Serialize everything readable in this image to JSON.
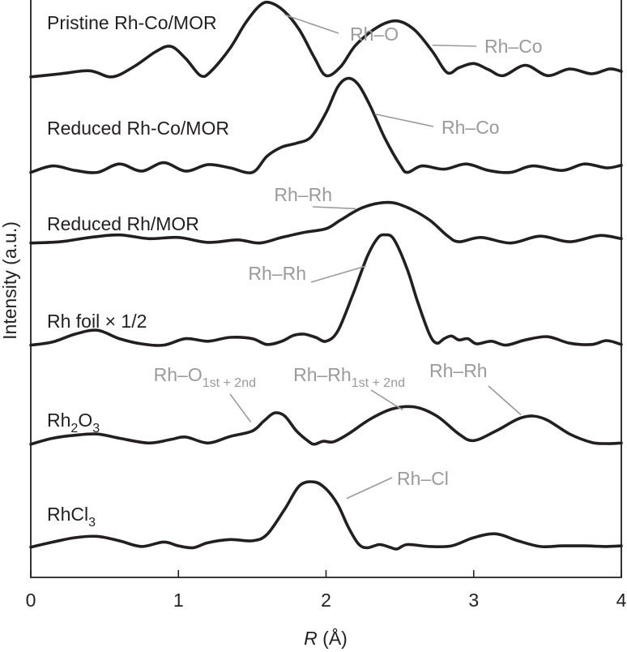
{
  "chart_data": {
    "type": "line",
    "xlabel_var": "R",
    "xlabel_unit": " (Å)",
    "ylabel": "Intensity (a.u.)",
    "xlim": [
      0,
      4
    ],
    "xticks": [
      "0",
      "1",
      "2",
      "3",
      "4"
    ],
    "series": [
      {
        "name": "Pristine Rh-Co/MOR",
        "label_parts": [
          {
            "t": "Pristine Rh-Co/MOR",
            "sub": false
          }
        ],
        "points": [
          [
            0,
            0.03
          ],
          [
            0.2,
            0.08
          ],
          [
            0.4,
            0.13
          ],
          [
            0.55,
            0.03
          ],
          [
            0.7,
            0.2
          ],
          [
            0.85,
            0.45
          ],
          [
            0.95,
            0.53
          ],
          [
            1.05,
            0.33
          ],
          [
            1.15,
            0.05
          ],
          [
            1.22,
            0.12
          ],
          [
            1.35,
            0.5
          ],
          [
            1.45,
            0.9
          ],
          [
            1.55,
            1.2
          ],
          [
            1.62,
            1.25
          ],
          [
            1.72,
            1.1
          ],
          [
            1.82,
            0.8
          ],
          [
            1.92,
            0.35
          ],
          [
            2.0,
            0.05
          ],
          [
            2.1,
            0.2
          ],
          [
            2.2,
            0.55
          ],
          [
            2.35,
            0.85
          ],
          [
            2.48,
            0.95
          ],
          [
            2.6,
            0.8
          ],
          [
            2.72,
            0.45
          ],
          [
            2.82,
            0.1
          ],
          [
            2.9,
            0.18
          ],
          [
            3.0,
            0.25
          ],
          [
            3.1,
            0.15
          ],
          [
            3.2,
            0.05
          ],
          [
            3.35,
            0.22
          ],
          [
            3.5,
            0.05
          ],
          [
            3.65,
            0.16
          ],
          [
            3.8,
            0.08
          ],
          [
            3.92,
            0.16
          ],
          [
            4.0,
            0.12
          ]
        ],
        "annotations": [
          {
            "parts": [
              {
                "t": "Rh–O",
                "sub": false
              }
            ],
            "x": 1.72,
            "y": 1.05
          },
          {
            "parts": [
              {
                "t": "Rh–Co",
                "sub": false
              }
            ],
            "x": 2.72,
            "y": 0.55
          }
        ]
      },
      {
        "name": "Reduced Rh-Co/MOR",
        "label_parts": [
          {
            "t": "Reduced Rh-Co/MOR",
            "sub": false
          }
        ],
        "points": [
          [
            0,
            0.03
          ],
          [
            0.15,
            0.13
          ],
          [
            0.3,
            0.06
          ],
          [
            0.45,
            0.03
          ],
          [
            0.6,
            0.16
          ],
          [
            0.75,
            0.05
          ],
          [
            0.9,
            0.18
          ],
          [
            1.05,
            0.05
          ],
          [
            1.2,
            0.15
          ],
          [
            1.35,
            0.1
          ],
          [
            1.5,
            0.03
          ],
          [
            1.6,
            0.28
          ],
          [
            1.7,
            0.42
          ],
          [
            1.8,
            0.48
          ],
          [
            1.9,
            0.58
          ],
          [
            2.0,
            0.95
          ],
          [
            2.08,
            1.35
          ],
          [
            2.15,
            1.48
          ],
          [
            2.22,
            1.38
          ],
          [
            2.3,
            1.05
          ],
          [
            2.4,
            0.55
          ],
          [
            2.5,
            0.15
          ],
          [
            2.55,
            0.03
          ],
          [
            2.65,
            0.13
          ],
          [
            2.8,
            0.08
          ],
          [
            2.95,
            0.16
          ],
          [
            3.1,
            0.06
          ],
          [
            3.25,
            0.03
          ],
          [
            3.4,
            0.13
          ],
          [
            3.6,
            0.06
          ],
          [
            3.75,
            0.16
          ],
          [
            3.9,
            0.1
          ],
          [
            4.0,
            0.14
          ]
        ],
        "annotations": [
          {
            "parts": [
              {
                "t": "Rh–Co",
                "sub": false
              }
            ],
            "x": 2.33,
            "y": 0.93
          }
        ]
      },
      {
        "name": "Reduced Rh/MOR",
        "label_parts": [
          {
            "t": "Reduced Rh/MOR",
            "sub": false
          }
        ],
        "points": [
          [
            0,
            0.03
          ],
          [
            0.2,
            0.05
          ],
          [
            0.4,
            0.12
          ],
          [
            0.6,
            0.16
          ],
          [
            0.8,
            0.1
          ],
          [
            1.0,
            0.12
          ],
          [
            1.2,
            0.04
          ],
          [
            1.4,
            0.08
          ],
          [
            1.55,
            0.03
          ],
          [
            1.7,
            0.12
          ],
          [
            1.85,
            0.2
          ],
          [
            2.0,
            0.26
          ],
          [
            2.1,
            0.4
          ],
          [
            2.25,
            0.6
          ],
          [
            2.42,
            0.68
          ],
          [
            2.55,
            0.6
          ],
          [
            2.7,
            0.4
          ],
          [
            2.82,
            0.15
          ],
          [
            2.9,
            0.05
          ],
          [
            3.05,
            0.12
          ],
          [
            3.25,
            0.03
          ],
          [
            3.45,
            0.14
          ],
          [
            3.65,
            0.05
          ],
          [
            3.85,
            0.15
          ],
          [
            4.0,
            0.1
          ]
        ],
        "annotations": [
          {
            "parts": [
              {
                "t": "Rh–Rh",
                "sub": false
              }
            ],
            "x": 2.2,
            "y": 0.58
          }
        ]
      },
      {
        "name": "Rh foil × 1/2",
        "label_parts": [
          {
            "t": "Rh foil × 1/2",
            "sub": false
          }
        ],
        "points": [
          [
            0,
            0.03
          ],
          [
            0.15,
            0.08
          ],
          [
            0.3,
            0.2
          ],
          [
            0.45,
            0.26
          ],
          [
            0.6,
            0.13
          ],
          [
            0.75,
            0.05
          ],
          [
            0.9,
            0.03
          ],
          [
            1.05,
            0.13
          ],
          [
            1.2,
            0.09
          ],
          [
            1.35,
            0.15
          ],
          [
            1.5,
            0.13
          ],
          [
            1.6,
            0.04
          ],
          [
            1.7,
            0.09
          ],
          [
            1.78,
            0.18
          ],
          [
            1.85,
            0.2
          ],
          [
            1.93,
            0.15
          ],
          [
            2.0,
            0.09
          ],
          [
            2.08,
            0.25
          ],
          [
            2.18,
            0.8
          ],
          [
            2.28,
            1.4
          ],
          [
            2.35,
            1.68
          ],
          [
            2.4,
            1.73
          ],
          [
            2.46,
            1.66
          ],
          [
            2.55,
            1.2
          ],
          [
            2.62,
            0.7
          ],
          [
            2.7,
            0.2
          ],
          [
            2.75,
            0.06
          ],
          [
            2.8,
            0.13
          ],
          [
            2.85,
            0.17
          ],
          [
            2.9,
            0.11
          ],
          [
            2.96,
            0.13
          ],
          [
            3.02,
            0.05
          ],
          [
            3.12,
            0.09
          ],
          [
            3.22,
            0.03
          ],
          [
            3.35,
            0.11
          ],
          [
            3.5,
            0.16
          ],
          [
            3.65,
            0.06
          ],
          [
            3.8,
            0.04
          ],
          [
            3.9,
            0.1
          ],
          [
            4.0,
            0.04
          ]
        ],
        "annotations": [
          {
            "parts": [
              {
                "t": "Rh–Rh",
                "sub": false
              }
            ],
            "x": 2.27,
            "y": 1.25
          }
        ]
      },
      {
        "name": "Rh2O3",
        "label_parts": [
          {
            "t": "Rh",
            "sub": false
          },
          {
            "t": "2",
            "sub": true
          },
          {
            "t": "O",
            "sub": false
          },
          {
            "t": "3",
            "sub": true
          }
        ],
        "points": [
          [
            0,
            0.03
          ],
          [
            0.15,
            0.13
          ],
          [
            0.3,
            0.18
          ],
          [
            0.45,
            0.2
          ],
          [
            0.6,
            0.13
          ],
          [
            0.8,
            0.05
          ],
          [
            0.95,
            0.11
          ],
          [
            1.05,
            0.15
          ],
          [
            1.2,
            0.05
          ],
          [
            1.35,
            0.16
          ],
          [
            1.5,
            0.25
          ],
          [
            1.58,
            0.42
          ],
          [
            1.65,
            0.55
          ],
          [
            1.72,
            0.5
          ],
          [
            1.8,
            0.25
          ],
          [
            1.88,
            0.08
          ],
          [
            1.92,
            0.03
          ],
          [
            1.98,
            0.08
          ],
          [
            2.05,
            0.07
          ],
          [
            2.15,
            0.2
          ],
          [
            2.3,
            0.45
          ],
          [
            2.45,
            0.62
          ],
          [
            2.6,
            0.65
          ],
          [
            2.75,
            0.5
          ],
          [
            2.9,
            0.2
          ],
          [
            3.0,
            0.09
          ],
          [
            3.15,
            0.25
          ],
          [
            3.3,
            0.45
          ],
          [
            3.4,
            0.5
          ],
          [
            3.5,
            0.43
          ],
          [
            3.65,
            0.2
          ],
          [
            3.8,
            0.06
          ],
          [
            3.9,
            0.04
          ],
          [
            4.0,
            0.05
          ]
        ],
        "annotations": [
          {
            "parts": [
              {
                "t": "Rh–O",
                "sub": false
              },
              {
                "t": "1st + 2nd",
                "sub": true
              }
            ],
            "x": 1.49,
            "y": 0.4
          },
          {
            "parts": [
              {
                "t": "Rh–Rh",
                "sub": false
              },
              {
                "t": "1st + 2nd",
                "sub": true
              }
            ],
            "x": 2.52,
            "y": 0.6
          },
          {
            "parts": [
              {
                "t": "Rh–Rh",
                "sub": false
              }
            ],
            "x": 3.32,
            "y": 0.52
          }
        ]
      },
      {
        "name": "RhCl3",
        "label_parts": [
          {
            "t": "RhCl",
            "sub": false
          },
          {
            "t": "3",
            "sub": true
          }
        ],
        "points": [
          [
            0,
            0.03
          ],
          [
            0.15,
            0.11
          ],
          [
            0.3,
            0.18
          ],
          [
            0.45,
            0.2
          ],
          [
            0.6,
            0.13
          ],
          [
            0.75,
            0.04
          ],
          [
            0.9,
            0.11
          ],
          [
            1.0,
            0.05
          ],
          [
            1.1,
            0.02
          ],
          [
            1.2,
            0.1
          ],
          [
            1.35,
            0.15
          ],
          [
            1.5,
            0.13
          ],
          [
            1.6,
            0.23
          ],
          [
            1.72,
            0.63
          ],
          [
            1.82,
            1.0
          ],
          [
            1.92,
            1.06
          ],
          [
            2.0,
            0.95
          ],
          [
            2.08,
            0.7
          ],
          [
            2.15,
            0.35
          ],
          [
            2.22,
            0.08
          ],
          [
            2.28,
            0.02
          ],
          [
            2.36,
            0.07
          ],
          [
            2.43,
            0.03
          ],
          [
            2.48,
            0.0
          ],
          [
            2.55,
            0.07
          ],
          [
            2.7,
            0.04
          ],
          [
            2.85,
            0.05
          ],
          [
            3.0,
            0.18
          ],
          [
            3.15,
            0.24
          ],
          [
            3.3,
            0.13
          ],
          [
            3.45,
            0.04
          ],
          [
            3.6,
            0.05
          ],
          [
            3.75,
            0.05
          ],
          [
            3.9,
            0.04
          ],
          [
            4.0,
            0.05
          ]
        ],
        "annotations": [
          {
            "parts": [
              {
                "t": "Rh–Cl",
                "sub": false
              }
            ],
            "x": 2.14,
            "y": 0.8
          }
        ]
      }
    ]
  }
}
